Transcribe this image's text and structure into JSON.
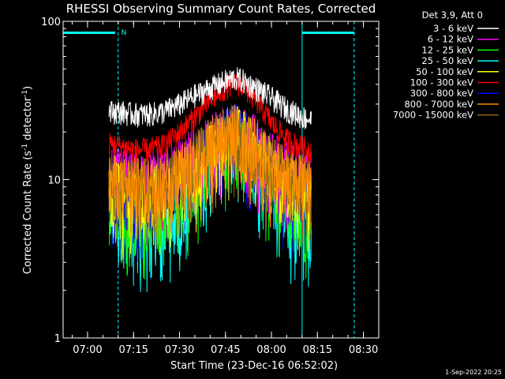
{
  "chart_data": {
    "type": "line",
    "title": "RHESSI Observing Summary Count Rates, Corrected",
    "xlabel": "Start Time (23-Dec-16 06:52:02)",
    "ylabel": "Corrected Count Rate (s",
    "ylabel_sup1": "-1",
    "ylabel_mid": " detector",
    "ylabel_sup2": "-1",
    "ylabel_end": ")",
    "y_scale": "log",
    "ylim": [
      1,
      100
    ],
    "y_ticks": [
      {
        "value": 1,
        "label": "1"
      },
      {
        "value": 10,
        "label": "10"
      },
      {
        "value": 100,
        "label": "100"
      }
    ],
    "xlim": [
      "06:52:02",
      "08:35:00"
    ],
    "x_ticks": [
      "07:00",
      "07:15",
      "07:30",
      "07:45",
      "08:00",
      "08:15",
      "08:30"
    ],
    "legend_header": "Det 3,9, Att 0",
    "legend_placement": "right",
    "timestamp": "1-Sep-2022 20:25",
    "grid": false,
    "series": [
      {
        "name": "3 - 6 keV",
        "color": "#ffffff",
        "x": [
          "07:07",
          "07:10",
          "07:15",
          "07:20",
          "07:25",
          "07:30",
          "07:35",
          "07:40",
          "07:45",
          "07:48",
          "07:50",
          "07:55",
          "08:00",
          "08:05",
          "08:10",
          "08:13"
        ],
        "values": [
          27,
          27,
          26,
          26,
          27,
          30,
          34,
          38,
          42,
          44,
          43,
          38,
          33,
          28,
          25,
          24
        ]
      },
      {
        "name": "6 - 12 keV",
        "color": "#ff00ff",
        "x": [
          "07:07",
          "07:10",
          "07:15",
          "07:20",
          "07:25",
          "07:30",
          "07:35",
          "07:40",
          "07:45",
          "07:48",
          "07:50",
          "07:55",
          "08:00",
          "08:05",
          "08:10",
          "08:13"
        ],
        "values": [
          11,
          11,
          10.5,
          10.5,
          11,
          12.5,
          15,
          18,
          21,
          22,
          21,
          17.5,
          14,
          12,
          11,
          10.5
        ]
      },
      {
        "name": "12 - 25 keV",
        "color": "#00ff00",
        "x": [
          "07:07",
          "07:10",
          "07:15",
          "07:20",
          "07:25",
          "07:30",
          "07:35",
          "07:40",
          "07:45",
          "07:48",
          "07:50",
          "07:55",
          "08:00",
          "08:05",
          "08:10",
          "08:13"
        ],
        "values": [
          7.5,
          7,
          6.5,
          6.5,
          7,
          8,
          10.5,
          14,
          18,
          20,
          19,
          14.5,
          10,
          7.5,
          6.5,
          6.5
        ]
      },
      {
        "name": "25 - 50 keV",
        "color": "#00ffff",
        "x": [
          "07:07",
          "07:10",
          "07:15",
          "07:20",
          "07:25",
          "07:30",
          "07:35",
          "07:40",
          "07:45",
          "07:48",
          "07:50",
          "07:55",
          "08:00",
          "08:05",
          "08:10",
          "08:13"
        ],
        "values": [
          6.5,
          5.5,
          5,
          5,
          5.5,
          6.5,
          9,
          13,
          17,
          19,
          18,
          13,
          9,
          6.5,
          5,
          5
        ]
      },
      {
        "name": "50 - 100 keV",
        "color": "#ffff00",
        "x": [
          "07:07",
          "07:10",
          "07:15",
          "07:20",
          "07:25",
          "07:30",
          "07:35",
          "07:40",
          "07:45",
          "07:48",
          "07:50",
          "07:55",
          "08:00",
          "08:05",
          "08:10",
          "08:13"
        ],
        "values": [
          9,
          9,
          8.5,
          8.5,
          9,
          10.5,
          13,
          16,
          20,
          21,
          20,
          16,
          12.5,
          10,
          9,
          9
        ]
      },
      {
        "name": "100 - 300 keV",
        "color": "#ff0000",
        "x": [
          "07:07",
          "07:10",
          "07:15",
          "07:20",
          "07:25",
          "07:30",
          "07:35",
          "07:40",
          "07:45",
          "07:48",
          "07:50",
          "07:55",
          "08:00",
          "08:05",
          "08:10",
          "08:13"
        ],
        "values": [
          17,
          16.5,
          15.5,
          15.5,
          16.5,
          20,
          25,
          32,
          38,
          41,
          40,
          32,
          23,
          18,
          16,
          15.5
        ]
      },
      {
        "name": "300 - 800 keV",
        "color": "#0000ff",
        "x": [
          "07:07",
          "07:10",
          "07:15",
          "07:20",
          "07:25",
          "07:30",
          "07:35",
          "07:40",
          "07:45",
          "07:48",
          "07:50",
          "07:55",
          "08:00",
          "08:05",
          "08:10",
          "08:13"
        ],
        "values": [
          9,
          8.5,
          8.5,
          8.5,
          9,
          10.5,
          13,
          16.5,
          20,
          21,
          20,
          16,
          12,
          9.5,
          8.5,
          8.5
        ]
      },
      {
        "name": "800 - 7000 keV",
        "color": "#ff8c00",
        "x": [
          "07:07",
          "07:10",
          "07:15",
          "07:20",
          "07:25",
          "07:30",
          "07:35",
          "07:40",
          "07:45",
          "07:48",
          "07:50",
          "07:55",
          "08:00",
          "08:05",
          "08:10",
          "08:13"
        ],
        "values": [
          10,
          10,
          9.5,
          9.5,
          10,
          11.5,
          14,
          17,
          20,
          21,
          20,
          16.5,
          13,
          11,
          10,
          10
        ]
      },
      {
        "name": "7000 - 15000 keV",
        "color": "#8b6914",
        "x": [
          "07:07",
          "07:10",
          "07:15",
          "07:20",
          "07:25",
          "07:30",
          "07:35",
          "07:40",
          "07:45",
          "07:48",
          "07:50",
          "07:55",
          "08:00",
          "08:05",
          "08:10",
          "08:13"
        ],
        "values": [
          10,
          10,
          9.5,
          9.5,
          10,
          11.5,
          14,
          17,
          20,
          21,
          20,
          16.5,
          13,
          11,
          10,
          10
        ]
      }
    ],
    "markers": {
      "night_solid_lines": [
        "06:52:02",
        "08:10"
      ],
      "saa_dashed_lines": [
        "07:10",
        "08:27"
      ],
      "night_bars": [
        [
          "06:52:02",
          "07:09"
        ],
        [
          "08:10",
          "08:27"
        ]
      ],
      "labels": [
        {
          "x": "07:11",
          "text": "N"
        }
      ],
      "color": "#00ffff"
    }
  }
}
